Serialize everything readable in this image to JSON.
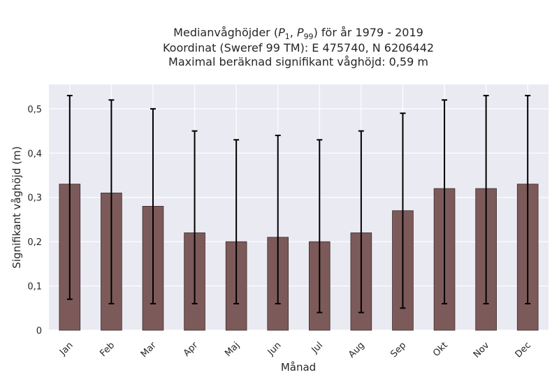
{
  "chart_data": {
    "type": "bar",
    "title_lines": [
      "Medianvåghöjder (P1, P99) för år 1979 - 2019",
      "Koordinat (Sweref 99 TM): E 475740, N 6206442",
      "Maximal beräknad signifikant våghöjd: 0,59 m"
    ],
    "xlabel": "Månad",
    "ylabel": "Signifikant våghöjd (m)",
    "categories": [
      "Jan",
      "Feb",
      "Mar",
      "Apr",
      "Maj",
      "Jun",
      "Jul",
      "Aug",
      "Sep",
      "Okt",
      "Nov",
      "Dec"
    ],
    "series": [
      {
        "values": [
          0.33,
          0.31,
          0.28,
          0.22,
          0.2,
          0.21,
          0.2,
          0.22,
          0.27,
          0.32,
          0.32,
          0.33
        ],
        "p1": [
          0.07,
          0.06,
          0.06,
          0.06,
          0.06,
          0.06,
          0.04,
          0.04,
          0.05,
          0.06,
          0.06,
          0.06
        ],
        "p99": [
          0.53,
          0.52,
          0.5,
          0.45,
          0.43,
          0.44,
          0.43,
          0.45,
          0.49,
          0.52,
          0.53,
          0.53
        ]
      }
    ],
    "ylim": [
      0,
      0.555
    ],
    "yticks": [
      0,
      0.1,
      0.2,
      0.3,
      0.4,
      0.5
    ],
    "ytick_labels": [
      "0",
      "0,1",
      "0,2",
      "0,3",
      "0,4",
      "0,5"
    ],
    "grid": true,
    "colors": {
      "bar": "#7d5a5a",
      "bar_edge": "#3a2a2a",
      "error": "#000000",
      "plot_bg": "#eaeaf2",
      "grid": "#ffffff"
    }
  }
}
